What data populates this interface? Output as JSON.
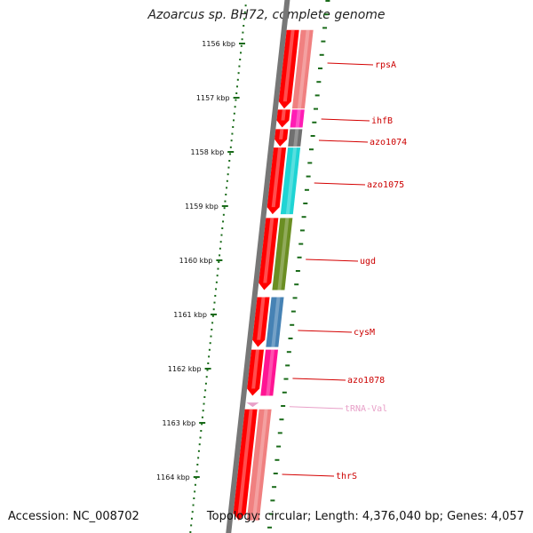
{
  "title": "Azoarcus sp. BH72, complete genome",
  "footer": {
    "accession": "Accession: NC_008702",
    "summary": "Topology: circular; Length: 4,376,040 bp; Genes: 4,057"
  },
  "colors": {
    "backbone": "#777777",
    "forward_strand": "#ff0000",
    "forward_strand_light": "#f09090",
    "ruler": "#1a6b1a",
    "label_line": "#d40000",
    "trna_label": "#e8a0c8"
  },
  "ruler": {
    "start_kbp": 1156,
    "end_kbp": 1164,
    "labels": [
      "1156 kbp",
      "1157 kbp",
      "1158 kbp",
      "1159 kbp",
      "1160 kbp",
      "1161 kbp",
      "1162 kbp",
      "1163 kbp",
      "1164 kbp"
    ]
  },
  "genes": [
    {
      "name": "rpsA",
      "start_kbp": 1155.75,
      "end_kbp": 1157.2,
      "color": "#f08080",
      "label_color": "#cc0000"
    },
    {
      "name": "ihfB",
      "start_kbp": 1157.22,
      "end_kbp": 1157.55,
      "color": "#ff1cb4",
      "label_color": "#cc0000"
    },
    {
      "name": "azo1074",
      "start_kbp": 1157.58,
      "end_kbp": 1157.9,
      "color": "#707070",
      "label_color": "#cc0000"
    },
    {
      "name": "azo1075",
      "start_kbp": 1157.92,
      "end_kbp": 1159.15,
      "color": "#1fd4d4",
      "label_color": "#cc0000"
    },
    {
      "name": "ugd",
      "start_kbp": 1159.22,
      "end_kbp": 1160.55,
      "color": "#6b8e23",
      "label_color": "#cc0000"
    },
    {
      "name": "cysM",
      "start_kbp": 1160.68,
      "end_kbp": 1161.6,
      "color": "#4682b4",
      "label_color": "#cc0000"
    },
    {
      "name": "azo1078",
      "start_kbp": 1161.65,
      "end_kbp": 1162.5,
      "color": "#ff1493",
      "label_color": "#cc0000"
    },
    {
      "name": "tRNA-Val",
      "start_kbp": 1162.55,
      "end_kbp": 1162.7,
      "color": "#e8a0c8",
      "label_color": "#e8a0c8"
    },
    {
      "name": "thrS",
      "start_kbp": 1162.75,
      "end_kbp": 1164.8,
      "color": "#f08080",
      "label_color": "#cc0000"
    }
  ]
}
